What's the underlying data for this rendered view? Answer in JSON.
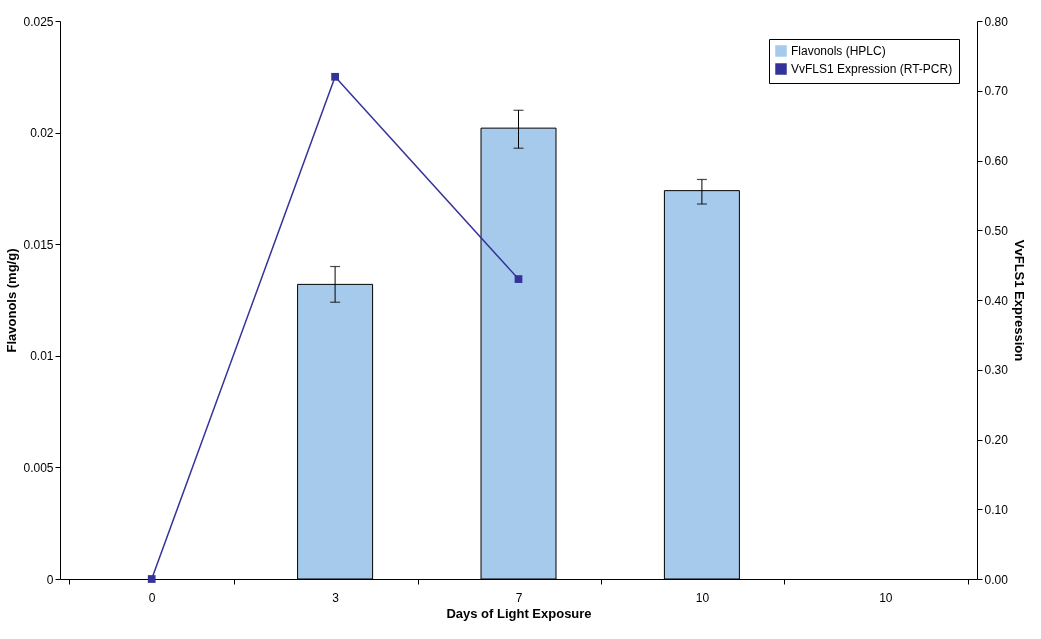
{
  "chart_data": {
    "type": "bar",
    "xlabel": "Days of Light Exposure",
    "ylabel": "Flavonols (mg/g)",
    "y2label": "VvFLS1 Expression",
    "categories": [
      "0",
      "3",
      "7",
      "10",
      "10"
    ],
    "series": [
      {
        "name": "Flavonols (HPLC)",
        "color": "#a6caec",
        "values": [
          null,
          0.0132,
          0.0202,
          0.0174,
          null
        ],
        "errors": [
          null,
          [
            0.0124,
            0.014
          ],
          [
            0.0193,
            0.021
          ],
          [
            0.0168,
            0.0179
          ],
          null
        ]
      },
      {
        "name": "VvFLS1 Expression (RT-PCR)",
        "type": "line",
        "axis": "y2",
        "color": "#333399",
        "values": [
          0,
          0.72,
          0.43,
          null,
          null
        ]
      }
    ],
    "ylim": [
      0,
      0.025
    ],
    "yticks": [
      0,
      0.005,
      0.01,
      0.015,
      0.02,
      0.025
    ],
    "y2lim": [
      0,
      0.8
    ],
    "y2ticks": [
      {
        "value": 0,
        "label": "0.00"
      },
      {
        "value": 0.1,
        "label": "0.10"
      },
      {
        "value": 0.2,
        "label": "0.20"
      },
      {
        "value": 0.3,
        "label": "0.30"
      },
      {
        "value": 0.4,
        "label": "0.40"
      },
      {
        "value": 0.5,
        "label": "0.50"
      },
      {
        "value": 0.6,
        "label": "0.60"
      },
      {
        "value": 0.7,
        "label": "0.70"
      },
      {
        "value": 0.8,
        "label": "0.80"
      }
    ],
    "grid": false,
    "legend": "top right",
    "marker": "square",
    "line_style": "solid"
  }
}
